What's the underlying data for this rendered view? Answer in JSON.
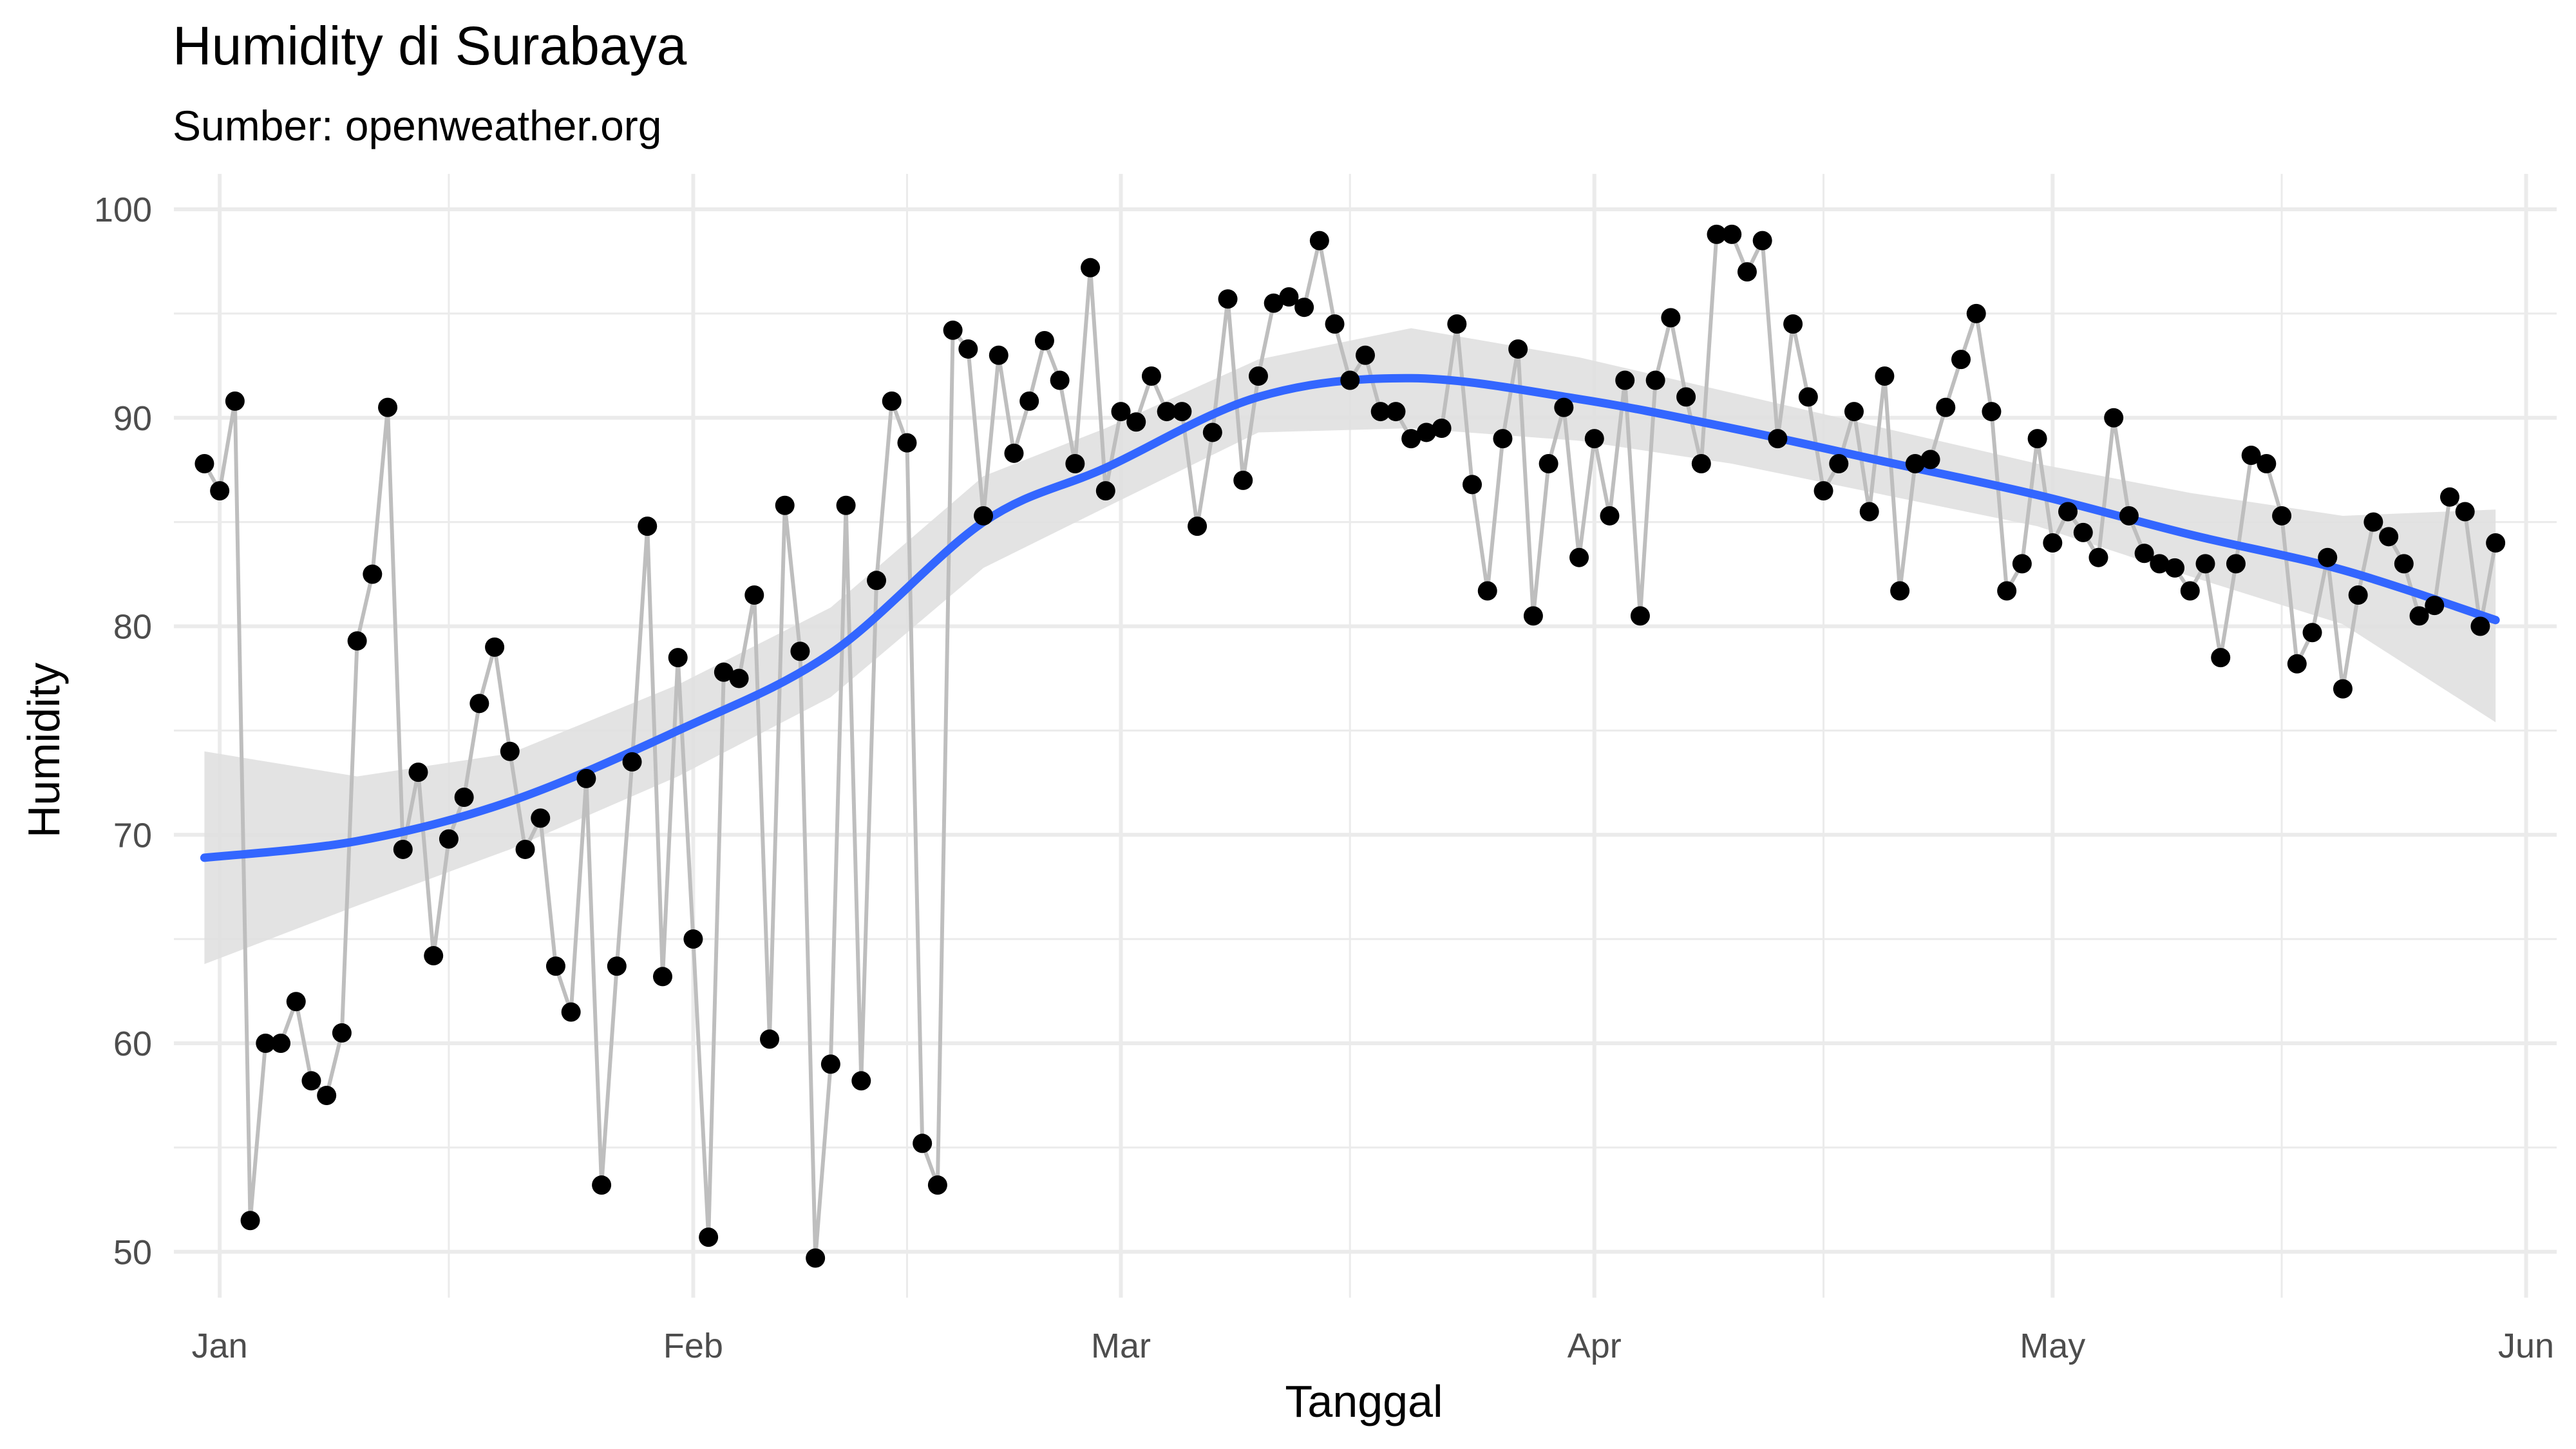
{
  "chart_data": {
    "type": "line",
    "title": "Humidity di Surabaya",
    "subtitle": "Sumber: openweather.org",
    "xlabel": "Tanggal",
    "ylabel": "Humidity",
    "ylim": [
      47.8,
      101.7
    ],
    "xlim": [
      "2022-12-29",
      "2023-06-03"
    ],
    "x_ticks": [
      {
        "date": "2023-01-01",
        "label": "Jan"
      },
      {
        "date": "2023-02-01",
        "label": "Feb"
      },
      {
        "date": "2023-03-01",
        "label": "Mar"
      },
      {
        "date": "2023-04-01",
        "label": "Apr"
      },
      {
        "date": "2023-05-01",
        "label": "May"
      },
      {
        "date": "2023-06-01",
        "label": "Jun"
      }
    ],
    "y_ticks": [
      50,
      60,
      70,
      80,
      90,
      100
    ],
    "grid": true,
    "legend": "none",
    "colors": {
      "points": "#000000",
      "line": "#bebebe",
      "smooth": "#3366ff",
      "ribbon": "#e0e0e0"
    },
    "series": [
      {
        "type": "line+points",
        "x": [
          "2022-12-31",
          "2023-01-01",
          "2023-01-02",
          "2023-01-03",
          "2023-01-04",
          "2023-01-05",
          "2023-01-06",
          "2023-01-07",
          "2023-01-08",
          "2023-01-09",
          "2023-01-10",
          "2023-01-11",
          "2023-01-12",
          "2023-01-13",
          "2023-01-14",
          "2023-01-15",
          "2023-01-16",
          "2023-01-17",
          "2023-01-18",
          "2023-01-19",
          "2023-01-20",
          "2023-01-21",
          "2023-01-22",
          "2023-01-23",
          "2023-01-24",
          "2023-01-25",
          "2023-01-26",
          "2023-01-27",
          "2023-01-28",
          "2023-01-29",
          "2023-01-30",
          "2023-01-31",
          "2023-02-01",
          "2023-02-02",
          "2023-02-03",
          "2023-02-04",
          "2023-02-05",
          "2023-02-06",
          "2023-02-07",
          "2023-02-08",
          "2023-02-09",
          "2023-02-10",
          "2023-02-11",
          "2023-02-12",
          "2023-02-13",
          "2023-02-14",
          "2023-02-15",
          "2023-02-16",
          "2023-02-17",
          "2023-02-18",
          "2023-02-19",
          "2023-02-20",
          "2023-02-21",
          "2023-02-22",
          "2023-02-23",
          "2023-02-24",
          "2023-02-25",
          "2023-02-26",
          "2023-02-27",
          "2023-02-28",
          "2023-03-01",
          "2023-03-02",
          "2023-03-03",
          "2023-03-04",
          "2023-03-05",
          "2023-03-06",
          "2023-03-07",
          "2023-03-08",
          "2023-03-09",
          "2023-03-10",
          "2023-03-11",
          "2023-03-12",
          "2023-03-13",
          "2023-03-14",
          "2023-03-15",
          "2023-03-16",
          "2023-03-17",
          "2023-03-18",
          "2023-03-19",
          "2023-03-20",
          "2023-03-21",
          "2023-03-22",
          "2023-03-23",
          "2023-03-24",
          "2023-03-25",
          "2023-03-26",
          "2023-03-27",
          "2023-03-28",
          "2023-03-29",
          "2023-03-30",
          "2023-03-31",
          "2023-04-01",
          "2023-04-02",
          "2023-04-03",
          "2023-04-04",
          "2023-04-05",
          "2023-04-06",
          "2023-04-07",
          "2023-04-08",
          "2023-04-09",
          "2023-04-10",
          "2023-04-11",
          "2023-04-12",
          "2023-04-13",
          "2023-04-14",
          "2023-04-15",
          "2023-04-16",
          "2023-04-17",
          "2023-04-18",
          "2023-04-19",
          "2023-04-20",
          "2023-04-21",
          "2023-04-22",
          "2023-04-23",
          "2023-04-24",
          "2023-04-25",
          "2023-04-26",
          "2023-04-27",
          "2023-04-28",
          "2023-04-29",
          "2023-04-30",
          "2023-05-01",
          "2023-05-02",
          "2023-05-03",
          "2023-05-04",
          "2023-05-05",
          "2023-05-06",
          "2023-05-07",
          "2023-05-08",
          "2023-05-09",
          "2023-05-10",
          "2023-05-11",
          "2023-05-12",
          "2023-05-13",
          "2023-05-14",
          "2023-05-15",
          "2023-05-16",
          "2023-05-17",
          "2023-05-18",
          "2023-05-19",
          "2023-05-20",
          "2023-05-21",
          "2023-05-22",
          "2023-05-23",
          "2023-05-24",
          "2023-05-25",
          "2023-05-26",
          "2023-05-27",
          "2023-05-28",
          "2023-05-29",
          "2023-05-30"
        ],
        "y": [
          87.8,
          86.5,
          90.8,
          51.5,
          60.0,
          60.0,
          62.0,
          58.2,
          57.5,
          60.5,
          79.3,
          82.5,
          90.5,
          69.3,
          73.0,
          64.2,
          69.8,
          71.8,
          76.3,
          79.0,
          74.0,
          69.3,
          70.8,
          63.7,
          61.5,
          72.7,
          53.2,
          63.7,
          73.5,
          84.8,
          63.2,
          78.5,
          65.0,
          50.7,
          77.8,
          77.5,
          81.5,
          60.2,
          85.8,
          78.8,
          49.7,
          59.0,
          85.8,
          58.2,
          82.2,
          90.8,
          88.8,
          55.2,
          53.2,
          94.2,
          93.3,
          85.3,
          93.0,
          88.3,
          90.8,
          93.7,
          91.8,
          87.8,
          97.2,
          86.5,
          90.3,
          89.8,
          92.0,
          90.3,
          90.3,
          84.8,
          89.3,
          95.7,
          87.0,
          92.0,
          95.5,
          95.8,
          95.3,
          98.5,
          94.5,
          91.8,
          93.0,
          90.3,
          90.3,
          89.0,
          89.3,
          89.5,
          94.5,
          86.8,
          81.7,
          89.0,
          93.3,
          80.5,
          87.8,
          90.5,
          83.3,
          89.0,
          85.3,
          91.8,
          80.5,
          91.8,
          94.8,
          91.0,
          87.8,
          98.8,
          98.8,
          97.0,
          98.5,
          89.0,
          94.5,
          91.0,
          86.5,
          87.8,
          90.3,
          85.5,
          92.0,
          81.7,
          87.8,
          88.0,
          90.5,
          92.8,
          95.0,
          90.3,
          81.7,
          83.0,
          89.0,
          84.0,
          85.5,
          84.5,
          83.3,
          90.0,
          85.3,
          83.5,
          83.0,
          82.8,
          81.7,
          83.0,
          78.5,
          83.0,
          88.2,
          87.8,
          85.3,
          78.2,
          79.7,
          83.3,
          77.0,
          81.5,
          85.0,
          84.3,
          83.0,
          80.5,
          81.0,
          86.2,
          85.5,
          80.0,
          84.0
        ]
      },
      {
        "type": "loess",
        "x": [
          "2022-12-31",
          "2023-01-10",
          "2023-01-20",
          "2023-01-31",
          "2023-02-10",
          "2023-02-20",
          "2023-02-28",
          "2023-03-10",
          "2023-03-20",
          "2023-03-31",
          "2023-04-10",
          "2023-04-20",
          "2023-04-30",
          "2023-05-10",
          "2023-05-20",
          "2023-05-30"
        ],
        "y": [
          68.9,
          69.7,
          71.6,
          75.0,
          78.7,
          85.0,
          87.6,
          91.0,
          91.9,
          90.9,
          89.5,
          87.9,
          86.3,
          84.4,
          82.7,
          80.3
        ],
        "ymin": [
          63.8,
          66.6,
          69.3,
          72.8,
          76.6,
          82.8,
          85.7,
          89.3,
          89.5,
          88.9,
          87.8,
          86.3,
          84.8,
          82.4,
          80.1,
          75.4
        ],
        "ymax": [
          74.0,
          72.8,
          73.9,
          77.2,
          80.9,
          87.2,
          89.5,
          92.8,
          94.3,
          92.9,
          91.2,
          89.5,
          87.8,
          86.4,
          85.3,
          85.6
        ]
      }
    ]
  }
}
